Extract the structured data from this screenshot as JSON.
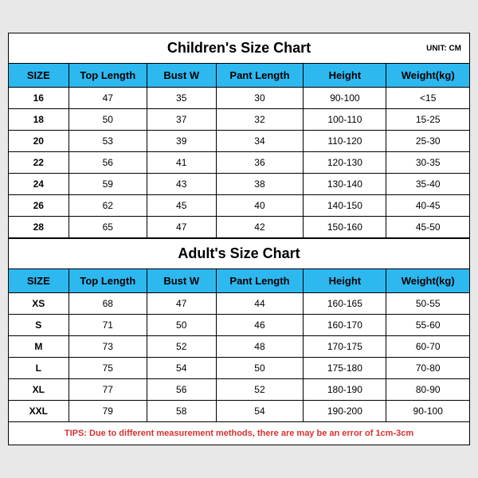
{
  "children": {
    "title": "Children's Size Chart",
    "unit": "UNIT: CM",
    "columns": [
      "SIZE",
      "Top Length",
      "Bust W",
      "Pant Length",
      "Height",
      "Weight(kg)"
    ],
    "rows": [
      [
        "16",
        "47",
        "35",
        "30",
        "90-100",
        "<15"
      ],
      [
        "18",
        "50",
        "37",
        "32",
        "100-110",
        "15-25"
      ],
      [
        "20",
        "53",
        "39",
        "34",
        "110-120",
        "25-30"
      ],
      [
        "22",
        "56",
        "41",
        "36",
        "120-130",
        "30-35"
      ],
      [
        "24",
        "59",
        "43",
        "38",
        "130-140",
        "35-40"
      ],
      [
        "26",
        "62",
        "45",
        "40",
        "140-150",
        "40-45"
      ],
      [
        "28",
        "65",
        "47",
        "42",
        "150-160",
        "45-50"
      ]
    ]
  },
  "adult": {
    "title": "Adult's Size Chart",
    "columns": [
      "SIZE",
      "Top Length",
      "Bust W",
      "Pant Length",
      "Height",
      "Weight(kg)"
    ],
    "rows": [
      [
        "XS",
        "68",
        "47",
        "44",
        "160-165",
        "50-55"
      ],
      [
        "S",
        "71",
        "50",
        "46",
        "160-170",
        "55-60"
      ],
      [
        "M",
        "73",
        "52",
        "48",
        "170-175",
        "60-70"
      ],
      [
        "L",
        "75",
        "54",
        "50",
        "175-180",
        "70-80"
      ],
      [
        "XL",
        "77",
        "56",
        "52",
        "180-190",
        "80-90"
      ],
      [
        "XXL",
        "79",
        "58",
        "54",
        "190-200",
        "90-100"
      ]
    ]
  },
  "tips": {
    "label": "TIPS: Due to different measurement methods, there are may be an error of 1cm-3cm",
    "color": "#d93030"
  },
  "style": {
    "header_bg": "#2db8f0",
    "col_widths": [
      "13%",
      "17%",
      "15%",
      "19%",
      "18%",
      "18%"
    ]
  }
}
